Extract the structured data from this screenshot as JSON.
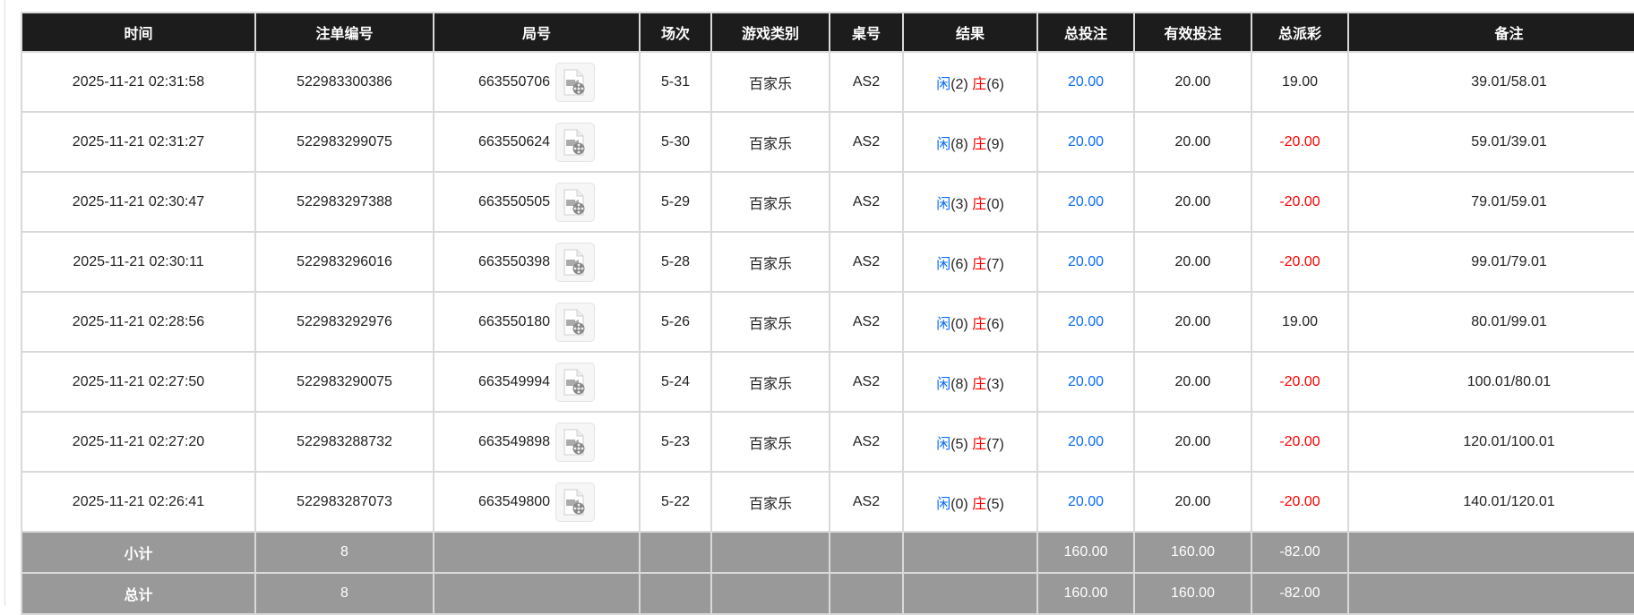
{
  "headers": [
    "时间",
    "注单编号",
    "局号",
    "场次",
    "游戏类别",
    "桌号",
    "结果",
    "总投注",
    "有效投注",
    "总派彩",
    "备注"
  ],
  "rows": [
    {
      "time": "2025-11-21 02:31:58",
      "bet_id": "522983300386",
      "round": "663550706",
      "session": "5-31",
      "game": "百家乐",
      "table": "AS2",
      "player": "闲",
      "player_pts": "(2)",
      "banker": "庄",
      "banker_pts": "(6)",
      "total_bet": "20.00",
      "valid_bet": "20.00",
      "payout": "19.00",
      "payout_negative": false,
      "remark": "39.01/58.01"
    },
    {
      "time": "2025-11-21 02:31:27",
      "bet_id": "522983299075",
      "round": "663550624",
      "session": "5-30",
      "game": "百家乐",
      "table": "AS2",
      "player": "闲",
      "player_pts": "(8)",
      "banker": "庄",
      "banker_pts": "(9)",
      "total_bet": "20.00",
      "valid_bet": "20.00",
      "payout": "-20.00",
      "payout_negative": true,
      "remark": "59.01/39.01"
    },
    {
      "time": "2025-11-21 02:30:47",
      "bet_id": "522983297388",
      "round": "663550505",
      "session": "5-29",
      "game": "百家乐",
      "table": "AS2",
      "player": "闲",
      "player_pts": "(3)",
      "banker": "庄",
      "banker_pts": "(0)",
      "total_bet": "20.00",
      "valid_bet": "20.00",
      "payout": "-20.00",
      "payout_negative": true,
      "remark": "79.01/59.01"
    },
    {
      "time": "2025-11-21 02:30:11",
      "bet_id": "522983296016",
      "round": "663550398",
      "session": "5-28",
      "game": "百家乐",
      "table": "AS2",
      "player": "闲",
      "player_pts": "(6)",
      "banker": "庄",
      "banker_pts": "(7)",
      "total_bet": "20.00",
      "valid_bet": "20.00",
      "payout": "-20.00",
      "payout_negative": true,
      "remark": "99.01/79.01"
    },
    {
      "time": "2025-11-21 02:28:56",
      "bet_id": "522983292976",
      "round": "663550180",
      "session": "5-26",
      "game": "百家乐",
      "table": "AS2",
      "player": "闲",
      "player_pts": "(0)",
      "banker": "庄",
      "banker_pts": "(6)",
      "total_bet": "20.00",
      "valid_bet": "20.00",
      "payout": "19.00",
      "payout_negative": false,
      "remark": "80.01/99.01"
    },
    {
      "time": "2025-11-21 02:27:50",
      "bet_id": "522983290075",
      "round": "663549994",
      "session": "5-24",
      "game": "百家乐",
      "table": "AS2",
      "player": "闲",
      "player_pts": "(8)",
      "banker": "庄",
      "banker_pts": "(3)",
      "total_bet": "20.00",
      "valid_bet": "20.00",
      "payout": "-20.00",
      "payout_negative": true,
      "remark": "100.01/80.01"
    },
    {
      "time": "2025-11-21 02:27:20",
      "bet_id": "522983288732",
      "round": "663549898",
      "session": "5-23",
      "game": "百家乐",
      "table": "AS2",
      "player": "闲",
      "player_pts": "(5)",
      "banker": "庄",
      "banker_pts": "(7)",
      "total_bet": "20.00",
      "valid_bet": "20.00",
      "payout": "-20.00",
      "payout_negative": true,
      "remark": "120.01/100.01"
    },
    {
      "time": "2025-11-21 02:26:41",
      "bet_id": "522983287073",
      "round": "663549800",
      "session": "5-22",
      "game": "百家乐",
      "table": "AS2",
      "player": "闲",
      "player_pts": "(0)",
      "banker": "庄",
      "banker_pts": "(5)",
      "total_bet": "20.00",
      "valid_bet": "20.00",
      "payout": "-20.00",
      "payout_negative": true,
      "remark": "140.01/120.01"
    }
  ],
  "subtotal": {
    "label": "小计",
    "count": "8",
    "total_bet": "160.00",
    "valid_bet": "160.00",
    "payout": "-82.00"
  },
  "total": {
    "label": "总计",
    "count": "8",
    "total_bet": "160.00",
    "valid_bet": "160.00",
    "payout": "-82.00"
  },
  "icons": {
    "replay": "video-file-icon"
  },
  "colors": {
    "header_bg": "#1c1c1c",
    "player": "#0a6cff",
    "banker": "#ff0000",
    "negative": "#ff0000",
    "summary_bg": "#999999"
  }
}
